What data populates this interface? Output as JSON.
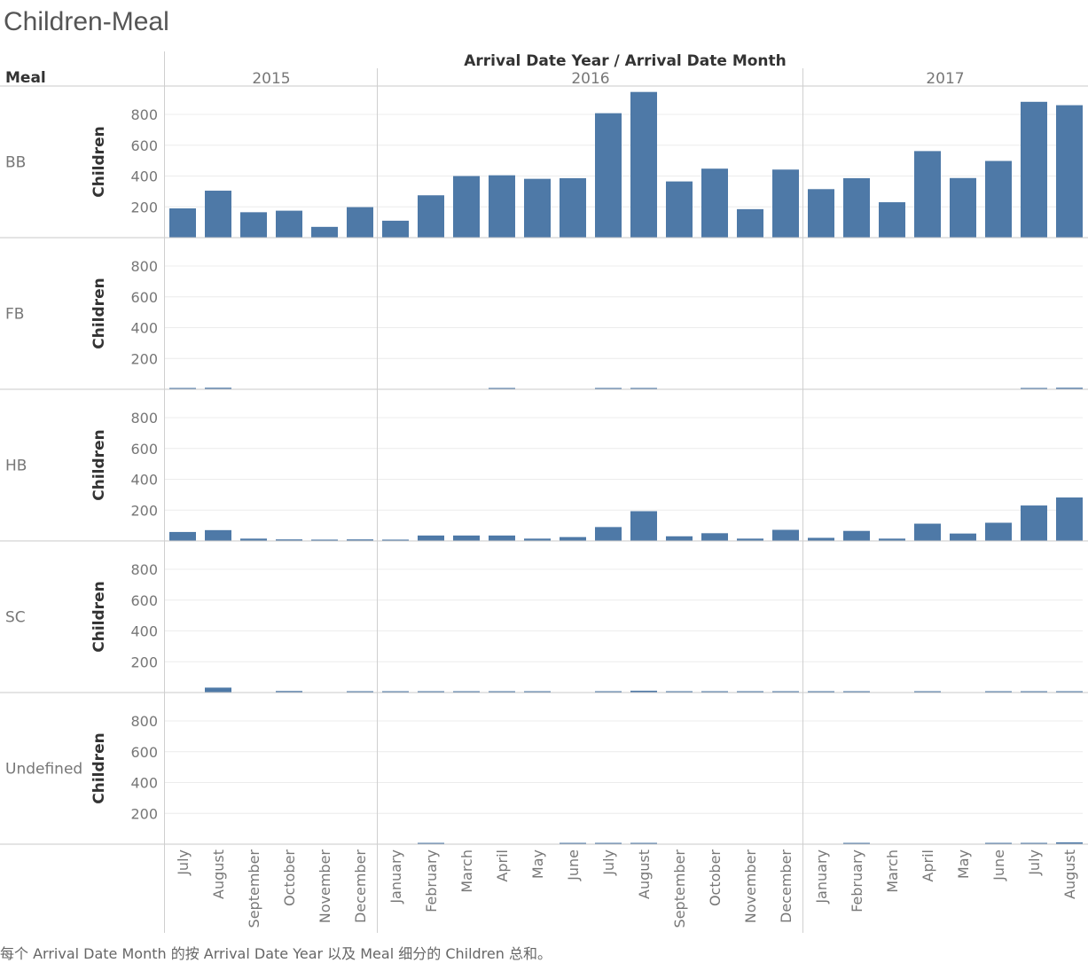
{
  "title": "Children-Meal",
  "footer": "每个 Arrival Date Month 的按 Arrival Date Year 以及 Meal 细分的 Children 总和。",
  "colors": {
    "bar": "#4e79a7",
    "grid": "#ececec",
    "axis_line": "#c8c8c8",
    "divider": "#cfcfcf",
    "text_dark": "#333333",
    "text_light": "#777777"
  },
  "chart_data": {
    "type": "bar",
    "column_header_title": "Arrival Date Year / Arrival Date Month",
    "row_header_title": "Meal",
    "ylabel": "Children",
    "ylim": [
      0,
      950
    ],
    "yticks": [
      200,
      400,
      600,
      800
    ],
    "grid": true,
    "years": [
      {
        "label": "2015",
        "months": [
          "July",
          "August",
          "September",
          "October",
          "November",
          "December"
        ]
      },
      {
        "label": "2016",
        "months": [
          "January",
          "February",
          "March",
          "April",
          "May",
          "June",
          "July",
          "August",
          "September",
          "October",
          "November",
          "December"
        ]
      },
      {
        "label": "2017",
        "months": [
          "January",
          "February",
          "March",
          "April",
          "May",
          "June",
          "July",
          "August"
        ]
      }
    ],
    "series": [
      {
        "name": "BB",
        "values": [
          190,
          305,
          165,
          175,
          70,
          198,
          110,
          275,
          400,
          405,
          382,
          386,
          808,
          946,
          365,
          448,
          185,
          442,
          315,
          386,
          230,
          562,
          387,
          498,
          882,
          860
        ]
      },
      {
        "name": "FB",
        "values": [
          6,
          10,
          0,
          0,
          0,
          0,
          0,
          0,
          0,
          2,
          0,
          0,
          2,
          2,
          0,
          0,
          0,
          0,
          0,
          0,
          0,
          0,
          0,
          0,
          2,
          10
        ]
      },
      {
        "name": "HB",
        "values": [
          58,
          70,
          15,
          10,
          5,
          10,
          6,
          35,
          35,
          35,
          15,
          25,
          90,
          193,
          30,
          50,
          15,
          72,
          20,
          65,
          15,
          112,
          48,
          118,
          230,
          282
        ]
      },
      {
        "name": "SC",
        "values": [
          0,
          32,
          0,
          10,
          0,
          4,
          2,
          2,
          2,
          2,
          2,
          0,
          2,
          12,
          6,
          4,
          2,
          2,
          2,
          2,
          0,
          6,
          0,
          6,
          6,
          6
        ]
      },
      {
        "name": "Undefined",
        "values": [
          0,
          0,
          0,
          0,
          0,
          0,
          0,
          4,
          0,
          0,
          0,
          4,
          8,
          2,
          0,
          0,
          0,
          0,
          0,
          4,
          0,
          0,
          0,
          4,
          4,
          12
        ]
      }
    ]
  }
}
